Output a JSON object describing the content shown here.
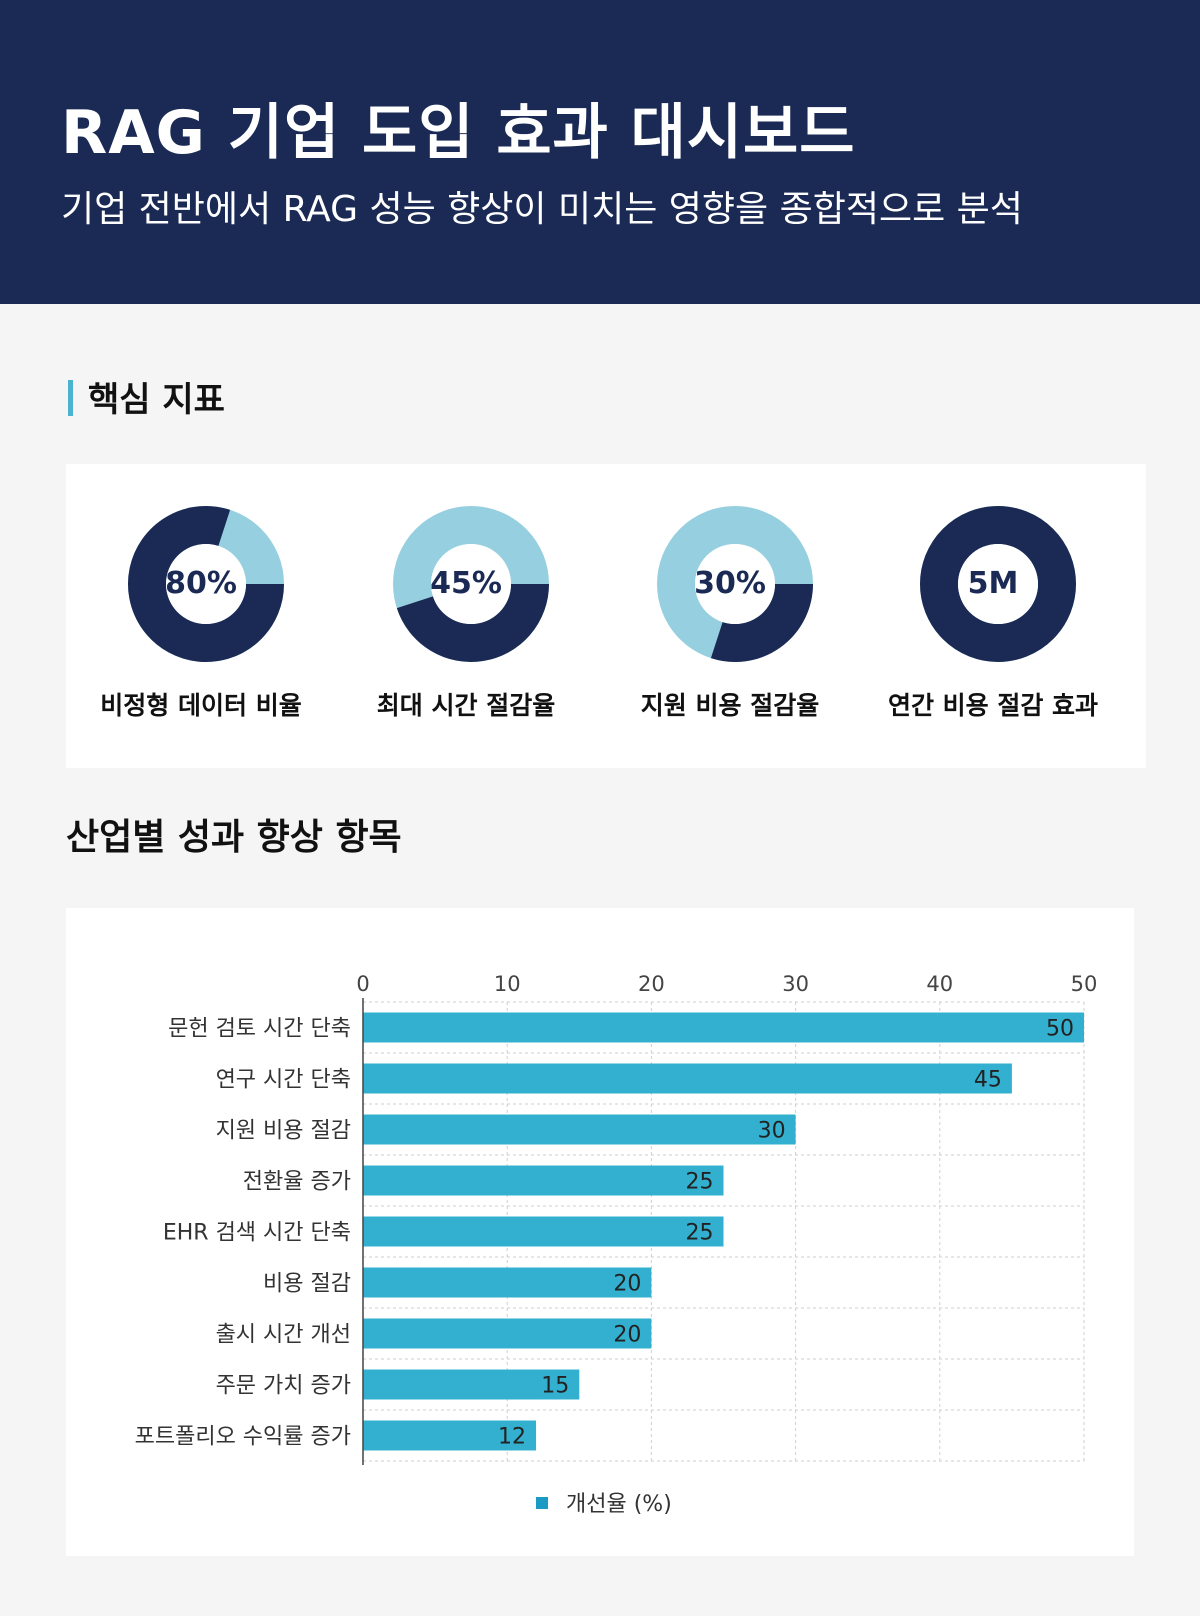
{
  "header": {
    "title": "RAG 기업 도입 효과 대시보드",
    "subtitle": "기업 전반에서 RAG 성능 향상이 미치는 영향을 종합적으로 분석"
  },
  "kpi_section": {
    "title": "핵심 지표",
    "items": [
      {
        "value": "80%",
        "label": "비정형 데이터 비율",
        "fraction": 0.8
      },
      {
        "value": "45%",
        "label": "최대 시간 절감율",
        "fraction": 0.45
      },
      {
        "value": "30%",
        "label": "지원 비용 절감율",
        "fraction": 0.3
      },
      {
        "value": "5M",
        "label": "연간 비용 절감 효과",
        "fraction": 1.0
      }
    ]
  },
  "colors": {
    "navy": "#1b2a54",
    "light_blue": "#96cfdf",
    "accent": "#4bb3cf",
    "bar": "#33b0cf",
    "legend_swatch": "#1b9bc4"
  },
  "chart_section": {
    "title": "산업별 성과 향상 항목"
  },
  "chart_data": {
    "type": "bar",
    "orientation": "horizontal",
    "categories": [
      "문헌 검토 시간 단축",
      "연구 시간 단축",
      "지원 비용 절감",
      "전환율 증가",
      "EHR 검색 시간 단축",
      "비용 절감",
      "출시 시간 개선",
      "주문 가치 증가",
      "포트폴리오 수익률 증가"
    ],
    "series": [
      {
        "name": "개선율 (%)",
        "values": [
          50,
          45,
          30,
          25,
          25,
          20,
          20,
          15,
          12
        ]
      }
    ],
    "xticks": [
      0,
      10,
      20,
      30,
      40,
      50
    ],
    "xlim": [
      0,
      50
    ],
    "xaxis_position": "top",
    "grid": true,
    "data_labels": true,
    "legend": "bottom-center"
  }
}
